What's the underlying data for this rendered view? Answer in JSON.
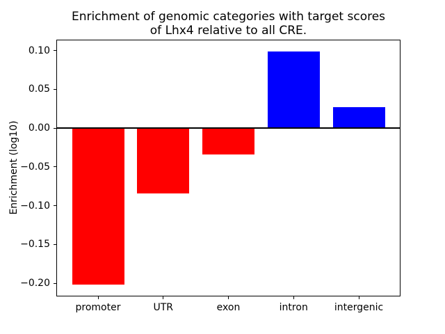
{
  "chart_data": {
    "type": "bar",
    "title": "Enrichment of genomic categories with target scores\nof Lhx4 relative to all CRE.",
    "xlabel": "",
    "ylabel": "Enrichment (log10)",
    "categories": [
      "promoter",
      "UTR",
      "exon",
      "intron",
      "intergenic"
    ],
    "values": [
      -0.202,
      -0.084,
      -0.034,
      0.099,
      0.027
    ],
    "bar_colors": [
      "#ff0000",
      "#ff0000",
      "#ff0000",
      "#0000ff",
      "#0000ff"
    ],
    "negative_color": "#ff0000",
    "positive_color": "#0000ff",
    "yticks": [
      0.1,
      0.05,
      0.0,
      -0.05,
      -0.1,
      -0.15,
      -0.2
    ],
    "ytick_labels": [
      "0.10",
      "0.05",
      "0.00",
      "−0.05",
      "−0.10",
      "−0.15",
      "−0.20"
    ],
    "ylim": [
      -0.217,
      0.114
    ],
    "xlim": [
      -0.64,
      4.64
    ],
    "bar_width": 0.8,
    "grid": false,
    "legend": false,
    "zero_line": true,
    "background_color": "#ffffff",
    "axis_color": "#000000"
  }
}
